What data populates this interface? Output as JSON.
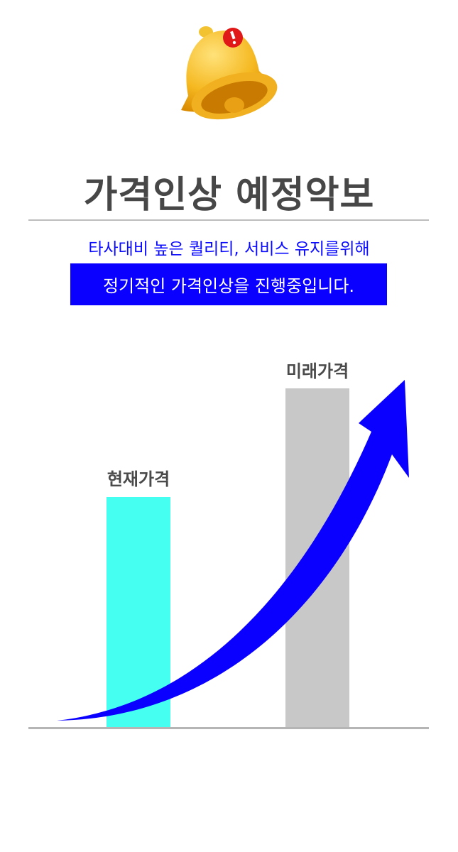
{
  "header": {
    "icon": "bell-alert-icon",
    "title": "가격인상 예정악보",
    "subtitle": "타사대비 높은 퀄리티, 서비스 유지를위해",
    "notice": "정기적인 가격인상을 진행중입니다."
  },
  "graphic": {
    "bars": [
      {
        "label": "현재가격",
        "color": "#45fff0"
      },
      {
        "label": "미래가격",
        "color": "#c8c8c8"
      }
    ],
    "arrow_color": "#0a00ff",
    "accent_color": "#0a00ff",
    "title_color": "#474747"
  }
}
